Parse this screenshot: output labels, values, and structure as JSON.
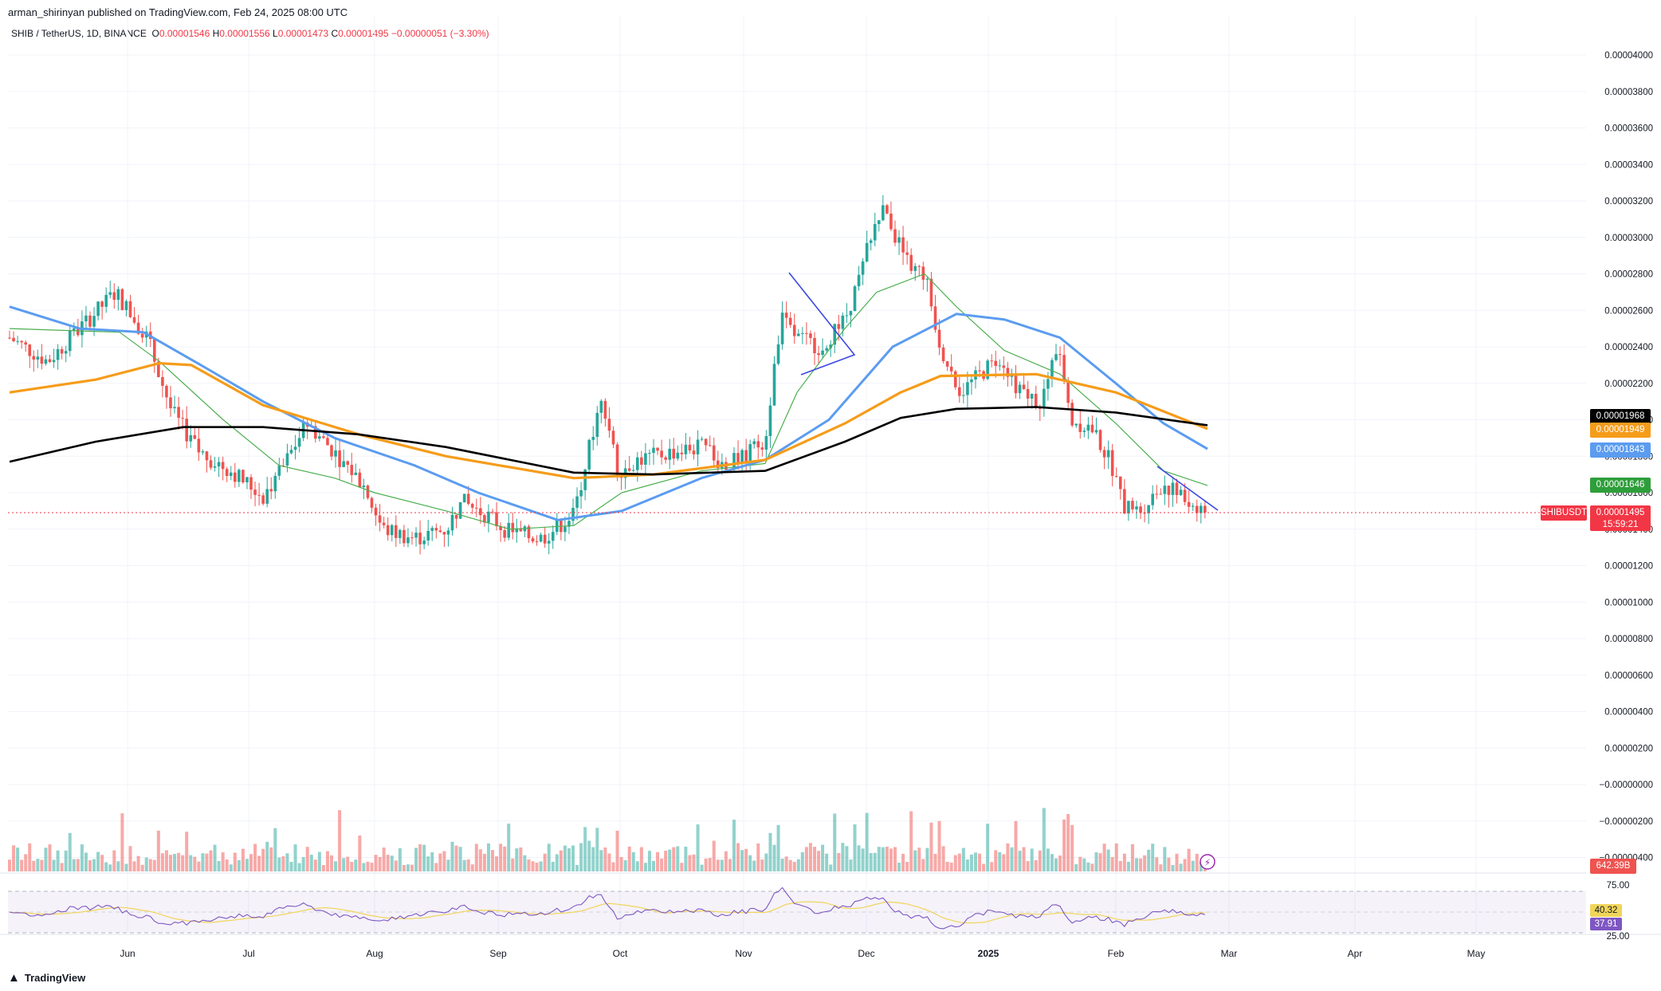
{
  "header": {
    "credit": "arman_shirinyan published on TradingView.com, Feb 24, 2025 08:00 UTC",
    "symbol": "SHIB / TetherUS, 1D, BINANCE",
    "o_label": "O",
    "o_value": "0.00001546",
    "h_label": "H",
    "h_value": "0.00001556",
    "l_label": "L",
    "l_value": "0.00001473",
    "c_label": "C",
    "c_value": "0.00001495",
    "change": "−0.00000051 (−3.30%)"
  },
  "footer": {
    "brand": "TradingView"
  },
  "colors": {
    "up": "#26a69a",
    "down": "#ef5350",
    "ma20": "#4caf50",
    "ma50": "#5b9cf0",
    "ma100": "#f59c1a",
    "ma200": "#000000",
    "trendline": "#3c49e0",
    "rsi": "#7e57c2",
    "rsi_ma": "#f0d55a"
  },
  "price_scale": {
    "ticks": [
      "0.00004000",
      "0.00003800",
      "0.00003600",
      "0.00003400",
      "0.00003200",
      "0.00003000",
      "0.00002800",
      "0.00002600",
      "0.00002400",
      "0.00002200",
      "0.00002000",
      "0.00001800",
      "0.00001600",
      "0.00001400",
      "0.00001200",
      "0.00001000",
      "0.00000800",
      "0.00000600",
      "0.00000400",
      "0.00000200",
      "−0.00000000",
      "−0.00000200",
      "−0.00000400"
    ],
    "labels": {
      "ma200": "0.00001968",
      "ma100": "0.00001949",
      "ma50": "0.00001843",
      "ma20": "0.00001646",
      "last": "0.00001495",
      "countdown": "15:59:21",
      "symbol_tag": "SHIBUSDT",
      "volume": "642.39B"
    }
  },
  "rsi_scale": {
    "upper": "75.00",
    "lower": "25.00",
    "rsi_ma_value": "40.32",
    "rsi_value": "37.91"
  },
  "time_axis": [
    "Jun",
    "Jul",
    "Aug",
    "Sep",
    "Oct",
    "Nov",
    "Dec",
    "2025",
    "Feb",
    "Mar",
    "Apr",
    "May"
  ],
  "chart_data": {
    "type": "candlestick",
    "symbol": "SHIB / TetherUS, 1D, BINANCE",
    "y_range": [
      -4e-06,
      4e-05
    ],
    "close_series_approx": {
      "x": [
        "May 20",
        "Jun 1",
        "Jun 15",
        "Jul 1",
        "Jul 15",
        "Aug 1",
        "Aug 15",
        "Sep 1",
        "Sep 15",
        "Oct 1",
        "Oct 15",
        "Nov 1",
        "Nov 12",
        "Nov 25",
        "Dec 5",
        "Dec 15",
        "Dec 25",
        "Jan 5",
        "Jan 15",
        "Jan 25",
        "Feb 3",
        "Feb 12",
        "Feb 24"
      ],
      "close": [
        2.45e-05,
        2.5e-05,
        2.58e-05,
        1.85e-05,
        1.95e-05,
        1.4e-05,
        1.5e-05,
        1.38e-05,
        1.35e-05,
        1.85e-05,
        1.8e-05,
        1.75e-05,
        2.5e-05,
        2.45e-05,
        3.1e-05,
        2.75e-05,
        2.15e-05,
        2.25e-05,
        2.3e-05,
        1.95e-05,
        1.5e-05,
        1.6e-05,
        1.495e-05
      ]
    },
    "moving_averages": [
      {
        "name": "MA200",
        "last": 1.968e-05
      },
      {
        "name": "MA100",
        "last": 1.949e-05
      },
      {
        "name": "MA50",
        "last": 1.843e-05
      },
      {
        "name": "MA20",
        "last": 1.646e-05
      }
    ],
    "rsi": {
      "value": 37.91,
      "ma": 40.32,
      "upper": 75,
      "lower": 25
    },
    "volume_last": "642.39B"
  }
}
